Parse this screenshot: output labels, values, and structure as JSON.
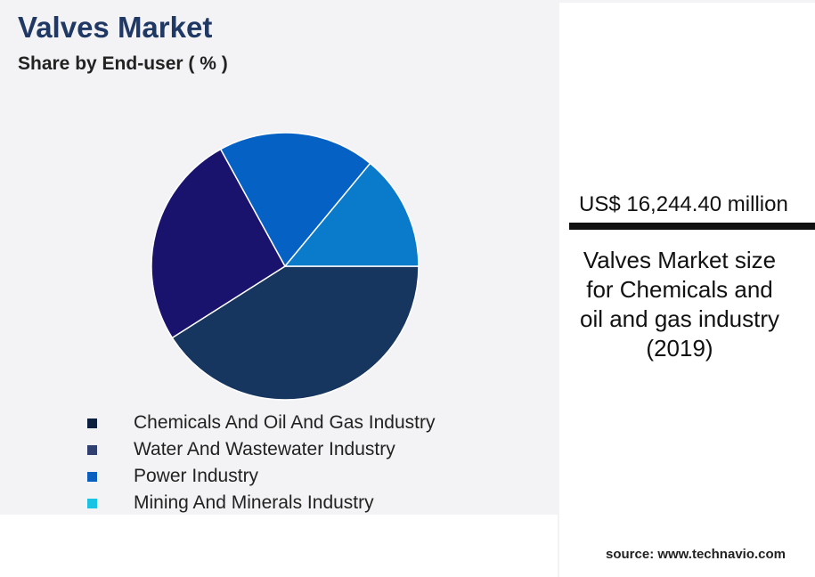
{
  "header": {
    "title": "Valves Market",
    "subtitle": "Share by End-user ( % )"
  },
  "chart_data": {
    "type": "pie",
    "title": "Valves Market",
    "subtitle": "Share by End-user ( % )",
    "categories": [
      "Chemicals And Oil And Gas Industry",
      "Water And Wastewater Industry",
      "Power Industry",
      "Mining And Minerals Industry"
    ],
    "values": [
      41,
      26,
      19,
      14
    ],
    "colors": [
      "#16355f",
      "#19136e",
      "#0561c4",
      "#0a7acb"
    ],
    "legend_swatch_colors": [
      "#0b1f3f",
      "#2f3f70",
      "#0a5fbf",
      "#19c3e3"
    ],
    "legend_position": "bottom"
  },
  "kpi": {
    "value": "US$ 16,244.40 million",
    "description_lines": [
      "Valves Market size",
      "for Chemicals and",
      "oil and gas industry",
      "(2019)"
    ]
  },
  "footer": {
    "source": "source: www.technavio.com"
  }
}
